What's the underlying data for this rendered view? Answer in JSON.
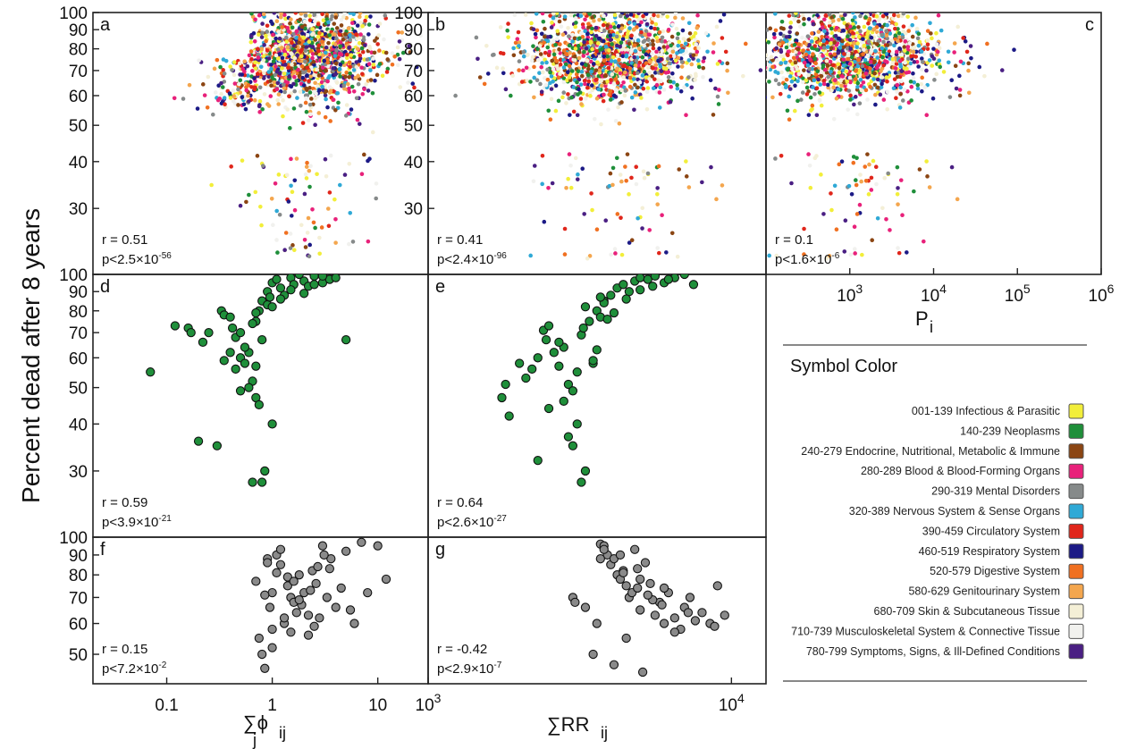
{
  "figure": {
    "ylabel": "Percent dead after 8 years",
    "xlabel_left": "∑ϕ",
    "xlabel_left_sup": "ij",
    "xlabel_left_sub": "j",
    "xlabel_mid": "∑RR",
    "xlabel_mid_sub": "ij",
    "xlabel_right": "P",
    "xlabel_right_sub": "i"
  },
  "legend": {
    "title": "Symbol Color",
    "items": [
      {
        "label": "001-139 Infectious & Parasitic",
        "color": "#f2ee3a"
      },
      {
        "label": "140-239 Neoplasms",
        "color": "#1f8f3a"
      },
      {
        "label": "240-279 Endocrine, Nutritional, Metabolic & Immune",
        "color": "#8b4513"
      },
      {
        "label": "280-289 Blood & Blood-Forming Organs",
        "color": "#e8217a"
      },
      {
        "label": "290-319 Mental Disorders",
        "color": "#868a8a"
      },
      {
        "label": "320-389 Nervous System & Sense Organs",
        "color": "#2fa9d6"
      },
      {
        "label": "390-459 Circulatory System",
        "color": "#e0261b"
      },
      {
        "label": "460-519 Respiratory System",
        "color": "#1c1a86"
      },
      {
        "label": "520-579 Digestive System",
        "color": "#f07021"
      },
      {
        "label": "580-629 Genitourinary System",
        "color": "#f4a64e"
      },
      {
        "label": "680-709 Skin & Subcutaneous Tissue",
        "color": "#f4efd6"
      },
      {
        "label": "710-739 Musculoskeletal System & Connective Tissue",
        "color": "#f1f1ee"
      },
      {
        "label": "780-799 Symptoms, Signs, & Ill-Defined Conditions",
        "color": "#4a1f83"
      }
    ]
  },
  "chart_data": [
    {
      "type": "scatter",
      "panel": "a",
      "stat_r": "r = 0.51",
      "stat_p": "p<2.5×10",
      "stat_p_exp": "-56",
      "yscale": "log",
      "xscale": "log",
      "ylim": [
        20,
        100
      ],
      "xlim": [
        0.02,
        30
      ],
      "yticks": [
        "30",
        "40",
        "50",
        "60",
        "70",
        "80",
        "90",
        "100"
      ],
      "series_note": "several thousand points colored by ICD category; cloud concentrated at x≈0.7–10, y≈55–100"
    },
    {
      "type": "scatter",
      "panel": "b",
      "stat_r": "r = 0.41",
      "stat_p": "p<2.4×10",
      "stat_p_exp": "-96",
      "yscale": "log",
      "xscale": "log",
      "ylim": [
        20,
        100
      ],
      "xlim": [
        1000,
        13000
      ],
      "yticks": [
        "30",
        "40",
        "50",
        "60",
        "70",
        "80",
        "90",
        "100"
      ]
    },
    {
      "type": "scatter",
      "panel": "c",
      "stat_r": "r = 0.1",
      "stat_p": "p<1.6×10",
      "stat_p_exp": "-6",
      "yscale": "log",
      "xscale": "log",
      "ylim": [
        20,
        100
      ],
      "xlim": [
        100,
        1000000
      ],
      "xticks": [
        {
          "base": "10",
          "exp": "3",
          "value": 1000
        },
        {
          "base": "10",
          "exp": "4",
          "value": 10000
        },
        {
          "base": "10",
          "exp": "5",
          "value": 100000
        },
        {
          "base": "10",
          "exp": "6",
          "value": 1000000
        }
      ]
    },
    {
      "type": "scatter",
      "panel": "d",
      "stat_r": "r = 0.59",
      "stat_p": "p<3.9×10",
      "stat_p_exp": "-21",
      "color": "#1f8f3a",
      "yscale": "log",
      "xscale": "log",
      "ylim": [
        20,
        100
      ],
      "xlim": [
        0.02,
        30
      ],
      "yticks": [
        "30",
        "40",
        "50",
        "60",
        "70",
        "80",
        "90",
        "100"
      ],
      "x": [
        0.07,
        0.12,
        0.16,
        0.17,
        0.2,
        0.22,
        0.25,
        0.3,
        0.33,
        0.35,
        0.4,
        0.42,
        0.45,
        0.5,
        0.55,
        0.6,
        0.65,
        0.7,
        0.7,
        0.75,
        0.8,
        0.8,
        0.9,
        1.0,
        1.0,
        1.1,
        1.2,
        1.3,
        1.5,
        1.6,
        1.8,
        2.0,
        2.2,
        2.5,
        3.0,
        3.5,
        4.0,
        5.0,
        0.5,
        0.6,
        0.75,
        0.85,
        0.45,
        0.55,
        0.65,
        0.5,
        0.7,
        0.9,
        1.2,
        1.5,
        2.0,
        2.5,
        3.0,
        0.35,
        0.4,
        0.8,
        1.0,
        0.95,
        0.7,
        0.65
      ],
      "y": [
        55,
        73,
        72,
        70,
        36,
        66,
        70,
        35,
        80,
        78,
        77,
        72,
        68,
        60,
        58,
        62,
        52,
        75,
        47,
        80,
        85,
        28,
        90,
        95,
        40,
        97,
        92,
        88,
        98,
        94,
        100,
        96,
        93,
        99,
        95,
        97,
        98,
        67,
        49,
        50,
        45,
        30,
        56,
        64,
        74,
        70,
        79,
        83,
        86,
        91,
        89,
        94,
        99,
        59,
        62,
        67,
        82,
        87,
        57,
        28
      ]
    },
    {
      "type": "scatter",
      "panel": "e",
      "stat_r": "r = 0.64",
      "stat_p": "p<2.6×10",
      "stat_p_exp": "-27",
      "color": "#1f8f3a",
      "yscale": "log",
      "xscale": "log",
      "ylim": [
        20,
        100
      ],
      "xlim": [
        1000,
        13000
      ],
      "x": [
        1750,
        1800,
        1850,
        2000,
        2100,
        2200,
        2300,
        2400,
        2450,
        2500,
        2600,
        2700,
        2800,
        2900,
        3000,
        3100,
        3200,
        3300,
        3400,
        3500,
        3600,
        3700,
        3800,
        4000,
        4200,
        4400,
        4600,
        4800,
        5000,
        5300,
        5600,
        6000,
        6500,
        7000,
        7500,
        3200,
        3250,
        2900,
        3000,
        3500,
        3600,
        3100,
        2800,
        2500,
        3800,
        4100,
        4500,
        5000,
        5500,
        6200,
        3300,
        3700,
        2700,
        2300,
        3900
      ],
      "y": [
        47,
        51,
        42,
        58,
        53,
        56,
        32,
        71,
        67,
        73,
        62,
        57,
        64,
        37,
        35,
        40,
        28,
        30,
        75,
        58,
        80,
        77,
        85,
        88,
        92,
        94,
        90,
        96,
        98,
        97,
        99,
        95,
        98,
        100,
        94,
        69,
        72,
        51,
        49,
        59,
        63,
        55,
        46,
        44,
        84,
        79,
        86,
        91,
        93,
        97,
        82,
        87,
        66,
        60,
        76
      ]
    },
    {
      "type": "scatter",
      "panel": "f",
      "stat_r": "r = 0.15",
      "stat_p": "p<7.2×10",
      "stat_p_exp": "-2",
      "color": "#8a8a8a",
      "yscale": "log",
      "xscale": "log",
      "ylim": [
        42,
        100
      ],
      "xlim": [
        0.02,
        30
      ],
      "yticks": [
        "50",
        "60",
        "70",
        "80",
        "90",
        "100"
      ],
      "xticks": [
        {
          "label": "0.1",
          "value": 0.1
        },
        {
          "label": "1",
          "value": 1
        },
        {
          "label": "10",
          "value": 10
        }
      ],
      "x": [
        0.7,
        0.75,
        0.8,
        0.85,
        0.9,
        0.95,
        1.0,
        1.0,
        1.1,
        1.2,
        1.3,
        1.4,
        1.5,
        1.6,
        1.7,
        1.8,
        2.0,
        2.2,
        2.4,
        2.6,
        2.8,
        3.0,
        3.3,
        3.6,
        4.0,
        4.5,
        5.0,
        6.0,
        7.0,
        8.0,
        10.0,
        12.0,
        0.9,
        1.1,
        1.3,
        1.5,
        1.9,
        2.3,
        2.7,
        3.1,
        1.0,
        1.4,
        1.8,
        2.2,
        0.85,
        1.2,
        1.6,
        2.5,
        3.5,
        5.5
      ],
      "y": [
        77,
        55,
        50,
        46,
        88,
        66,
        72,
        58,
        90,
        85,
        60,
        75,
        70,
        68,
        64,
        80,
        72,
        56,
        82,
        76,
        62,
        95,
        70,
        88,
        66,
        74,
        92,
        60,
        97,
        72,
        95,
        78,
        86,
        81,
        62,
        57,
        67,
        73,
        84,
        90,
        52,
        79,
        69,
        63,
        71,
        93,
        77,
        59,
        83,
        65
      ]
    },
    {
      "type": "scatter",
      "panel": "g",
      "stat_r": "r = -0.42",
      "stat_p": "p<2.9×10",
      "stat_p_exp": "-7",
      "color": "#8a8a8a",
      "yscale": "log",
      "xscale": "log",
      "ylim": [
        42,
        100
      ],
      "xlim": [
        1000,
        13000
      ],
      "xticks": [
        {
          "base": "10",
          "exp": "3",
          "value": 1000
        },
        {
          "base": "10",
          "exp": "4",
          "value": 10000
        }
      ],
      "x": [
        3000,
        3050,
        3300,
        3500,
        3600,
        3700,
        3800,
        3900,
        4000,
        4100,
        4200,
        4300,
        4400,
        4500,
        4600,
        4700,
        4800,
        4900,
        5000,
        5200,
        5400,
        5600,
        5800,
        6000,
        6200,
        6500,
        6800,
        7000,
        7300,
        7600,
        8000,
        8500,
        9000,
        9500,
        4100,
        4500,
        5000,
        5500,
        6000,
        6500,
        3700,
        4300,
        4900,
        5300,
        3800,
        4400,
        5900,
        7200,
        8800,
        5100
      ],
      "y": [
        70,
        68,
        66,
        50,
        60,
        96,
        95,
        90,
        85,
        88,
        80,
        78,
        82,
        75,
        70,
        72,
        93,
        74,
        65,
        86,
        76,
        63,
        68,
        60,
        72,
        62,
        58,
        66,
        70,
        61,
        64,
        60,
        75,
        63,
        47,
        55,
        78,
        69,
        74,
        57,
        88,
        90,
        83,
        71,
        93,
        81,
        67,
        64,
        59,
        45
      ]
    }
  ]
}
